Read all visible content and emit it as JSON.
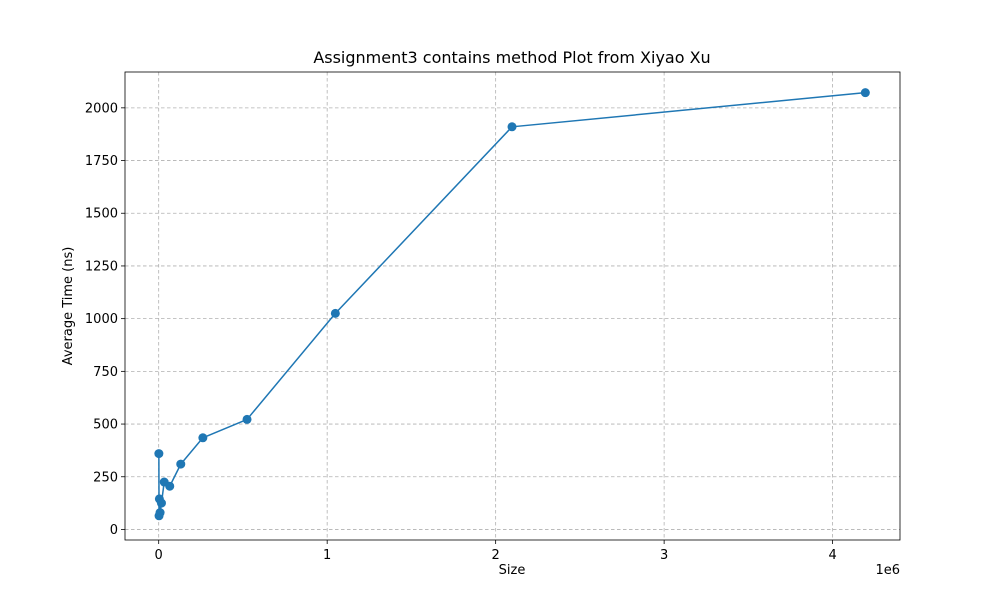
{
  "chart_data": {
    "type": "line",
    "title": "Assignment3 contains method Plot from Xiyao Xu",
    "xlabel": "Size",
    "ylabel": "Average Time (ns)",
    "x_offset_label": "1e6",
    "xlim": [
      -200000,
      4400000
    ],
    "ylim": [
      -50,
      2170
    ],
    "x_ticks": [
      0,
      1000000,
      2000000,
      3000000,
      4000000
    ],
    "x_tick_labels": [
      "0",
      "1",
      "2",
      "3",
      "4"
    ],
    "y_ticks": [
      0,
      250,
      500,
      750,
      1000,
      1250,
      1500,
      1750,
      2000
    ],
    "y_tick_labels": [
      "0",
      "250",
      "500",
      "750",
      "1000",
      "1250",
      "1500",
      "1750",
      "2000"
    ],
    "grid": true,
    "marker": "circle",
    "color": "#1f77b4",
    "series": [
      {
        "x": [
          1024,
          2048,
          4096,
          8192,
          16384,
          32768,
          65536,
          131072,
          262144,
          524288,
          1048576,
          2097152,
          4194304
        ],
        "y": [
          360,
          65,
          145,
          80,
          125,
          225,
          205,
          310,
          435,
          522,
          1025,
          1910,
          2072
        ]
      }
    ]
  }
}
